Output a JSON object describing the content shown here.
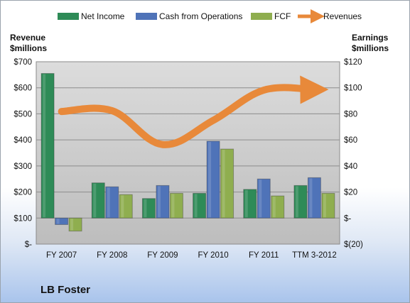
{
  "company": "LB Foster",
  "legend": {
    "net_income": "Net Income",
    "cash_from_operations": "Cash from Operations",
    "fcf": "FCF",
    "revenues": "Revenues"
  },
  "left_axis_title": [
    "Revenue",
    "$millions"
  ],
  "right_axis_title": [
    "Earnings",
    "$millions"
  ],
  "colors": {
    "net_income": "#2e8b57",
    "cash_from_operations": "#4f73b8",
    "fcf": "#8fae4f",
    "revenues": "#e8893a",
    "plot_background": "#cfcfcf"
  },
  "chart_data": {
    "type": "bar",
    "categories": [
      "FY 2007",
      "FY 2008",
      "FY 2009",
      "FY 2010",
      "FY 2011",
      "TTM 3-2012"
    ],
    "series": [
      {
        "name": "Net Income",
        "axis": "right",
        "values": [
          111,
          27,
          15,
          19,
          22,
          25
        ]
      },
      {
        "name": "Cash from Operations",
        "axis": "right",
        "values": [
          -5,
          24,
          25,
          59,
          30,
          31
        ]
      },
      {
        "name": "FCF",
        "axis": "right",
        "values": [
          -10,
          18,
          19,
          53,
          17,
          19
        ]
      },
      {
        "name": "Revenues",
        "type": "line",
        "axis": "left",
        "values": [
          509,
          512,
          382,
          475,
          591,
          593
        ]
      }
    ],
    "y_left": {
      "ylim": [
        0,
        700
      ],
      "ticks": [
        "$-",
        "$100",
        "$200",
        "$300",
        "$400",
        "$500",
        "$600",
        "$700"
      ]
    },
    "y_right": {
      "ylim": [
        -20,
        120
      ],
      "ticks": [
        "$(20)",
        "$-",
        "$20",
        "$40",
        "$60",
        "$80",
        "$100",
        "$120"
      ]
    },
    "grid": true,
    "legend_position": "top"
  }
}
